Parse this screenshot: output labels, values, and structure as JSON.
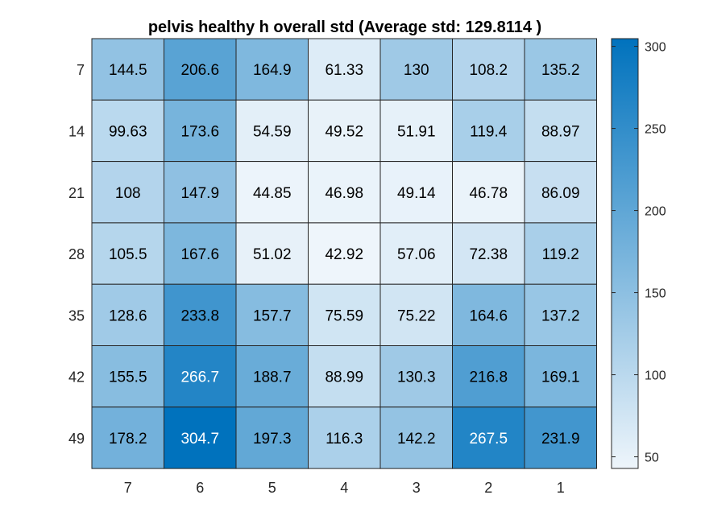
{
  "chart_data": {
    "type": "heatmap",
    "title": "pelvis healthy h overall std (Average std: 129.8114 )",
    "x_labels": [
      "7",
      "6",
      "5",
      "4",
      "3",
      "2",
      "1"
    ],
    "y_labels": [
      "7",
      "14",
      "21",
      "28",
      "35",
      "42",
      "49"
    ],
    "values": [
      [
        144.5,
        206.6,
        164.9,
        61.33,
        130,
        108.2,
        135.2
      ],
      [
        99.63,
        173.6,
        54.59,
        49.52,
        51.91,
        119.4,
        88.97
      ],
      [
        108,
        147.9,
        44.85,
        46.98,
        49.14,
        46.78,
        86.09
      ],
      [
        105.5,
        167.6,
        51.02,
        42.92,
        57.06,
        72.38,
        119.2
      ],
      [
        128.6,
        233.8,
        157.7,
        75.59,
        75.22,
        164.6,
        137.2
      ],
      [
        155.5,
        266.7,
        188.7,
        88.99,
        130.3,
        216.8,
        169.1
      ],
      [
        178.2,
        304.7,
        197.3,
        116.3,
        142.2,
        267.5,
        231.9
      ]
    ],
    "cell_text": [
      [
        "144.5",
        "206.6",
        "164.9",
        "61.33",
        "130",
        "108.2",
        "135.2"
      ],
      [
        "99.63",
        "173.6",
        "54.59",
        "49.52",
        "51.91",
        "119.4",
        "88.97"
      ],
      [
        "108",
        "147.9",
        "44.85",
        "46.98",
        "49.14",
        "46.78",
        "86.09"
      ],
      [
        "105.5",
        "167.6",
        "51.02",
        "42.92",
        "57.06",
        "72.38",
        "119.2"
      ],
      [
        "128.6",
        "233.8",
        "157.7",
        "75.59",
        "75.22",
        "164.6",
        "137.2"
      ],
      [
        "155.5",
        "266.7",
        "188.7",
        "88.99",
        "130.3",
        "216.8",
        "169.1"
      ],
      [
        "178.2",
        "304.7",
        "197.3",
        "116.3",
        "142.2",
        "267.5",
        "231.9"
      ]
    ],
    "colorbar": {
      "range": [
        42.92,
        304.7
      ],
      "ticks": [
        50,
        100,
        150,
        200,
        250,
        300
      ],
      "tick_labels": [
        "50",
        "100",
        "150",
        "200",
        "250",
        "300"
      ],
      "color_low": "#eef5fb",
      "color_high": "#0072bd"
    },
    "colors": {
      "cell_border": "#262626",
      "text_dark": "#000000",
      "text_light": "#ffffff"
    }
  }
}
